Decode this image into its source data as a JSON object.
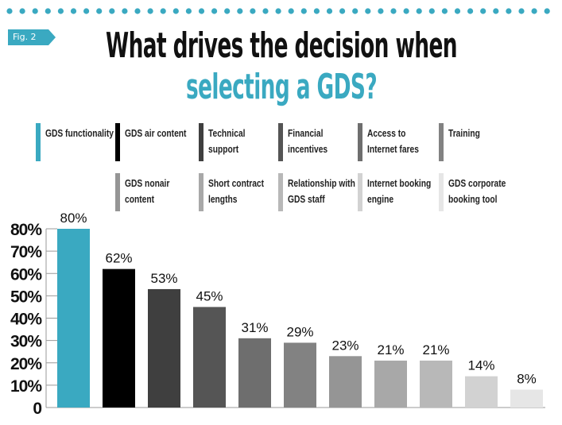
{
  "header": {
    "fig_label": "Fig. 2",
    "title_line1": "What drives the decision when",
    "title_line2": "selecting a GDS?"
  },
  "colors": {
    "accent": "#3aa9c1",
    "dots": "#3aa9c1"
  },
  "chart_data": {
    "type": "bar",
    "title": "What drives the decision when selecting a GDS?",
    "categories": [
      "GDS functionality",
      "GDS air content",
      "Technical support",
      "Financial incentives",
      "Access to Internet fares",
      "Training",
      "GDS nonair content",
      "Short contract lengths",
      "Relationship with GDS staff",
      "Internet booking engine",
      "GDS corporate booking tool"
    ],
    "values": [
      80,
      62,
      53,
      45,
      31,
      29,
      23,
      21,
      21,
      14,
      8
    ],
    "data_labels": [
      "80%",
      "62%",
      "53%",
      "45%",
      "31%",
      "29%",
      "23%",
      "21%",
      "21%",
      "14%",
      "8%"
    ],
    "colors": [
      "#3aa9c1",
      "#000000",
      "#3f3f3f",
      "#555555",
      "#6e6e6e",
      "#828282",
      "#959595",
      "#a8a8a8",
      "#b8b8b8",
      "#d2d2d2",
      "#e6e6e6"
    ],
    "ylim": [
      0,
      80
    ],
    "yticks": [
      "0",
      "10%",
      "20%",
      "30%",
      "40%",
      "50%",
      "60%",
      "70%",
      "80%"
    ],
    "grid": false,
    "legend": "top"
  }
}
